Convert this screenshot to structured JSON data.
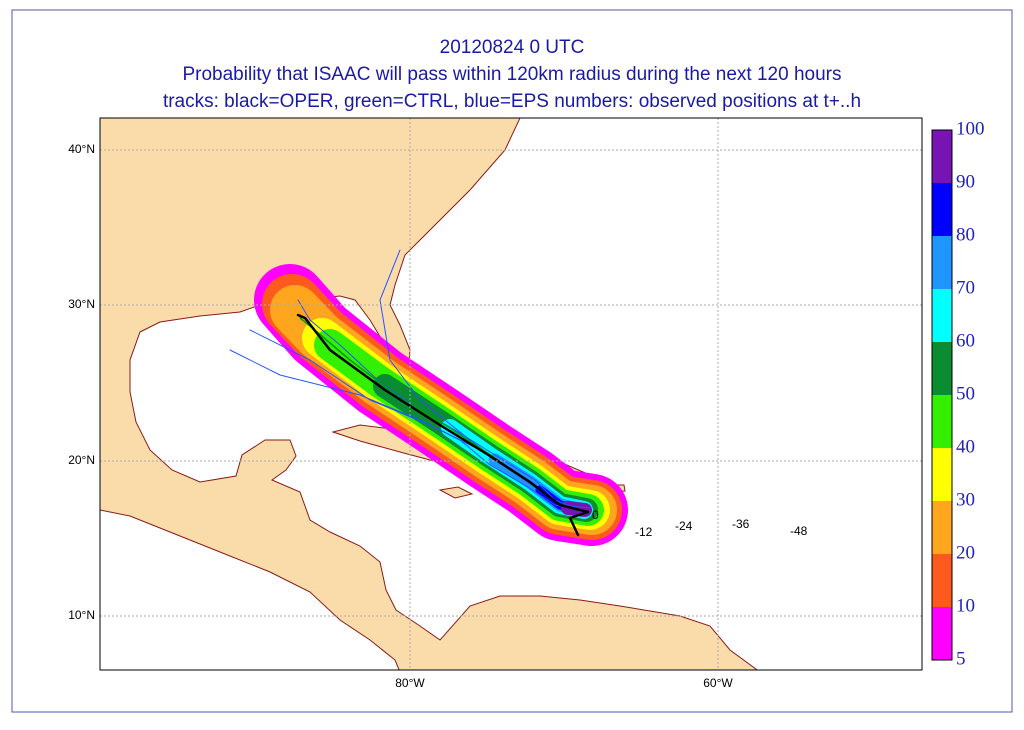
{
  "title": [
    "20120824 0 UTC",
    "Probability that ISAAC will pass within 120km radius during the next 120 hours",
    "tracks: black=OPER, green=CTRL, blue=EPS numbers: observed positions at t+..h"
  ],
  "lat_labels": [
    "40°N",
    "30°N",
    "20°N",
    "10°N"
  ],
  "lon_labels": [
    "80°W",
    "60°W"
  ],
  "colorbar": {
    "levels": [
      5,
      10,
      20,
      30,
      40,
      50,
      60,
      70,
      80,
      90,
      100
    ],
    "colors": [
      "#ff00ff",
      "#ff5a1e",
      "#ffa51e",
      "#ffff00",
      "#32f000",
      "#0a8c32",
      "#00ffff",
      "#1e96ff",
      "#0000ff",
      "#7814b4"
    ]
  },
  "positions": [
    "0",
    "-12",
    "-24",
    "-36",
    "-48"
  ]
}
